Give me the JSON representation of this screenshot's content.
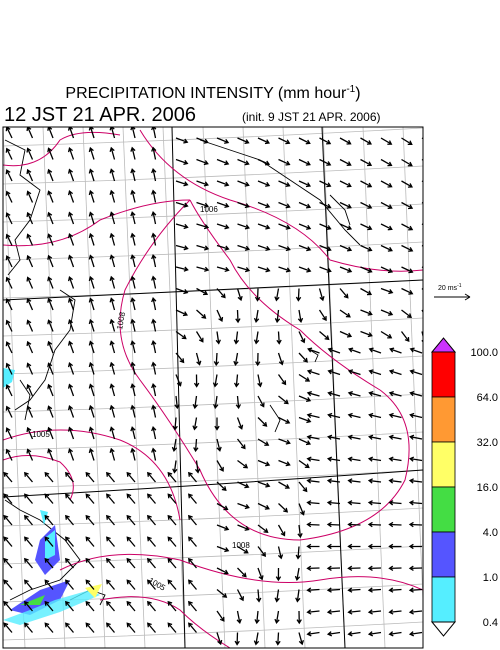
{
  "header": {
    "title": {
      "text": "PRECIPITATION INTENSITY (mm hour",
      "superscript": "-1",
      "suffix": ")"
    },
    "valid_time": "12 JST 21 APR. 2006",
    "init_time": "(init. 9 JST 21 APR. 2006)"
  },
  "vector_scale": {
    "text": "20 ms",
    "superscript": "-1"
  },
  "contour_labels": [
    "1006",
    "1008",
    "1005",
    "1008",
    "1005"
  ],
  "colorbar": {
    "labels": [
      "100.0",
      "64.0",
      "32.0",
      "16.0",
      "4.0",
      "1.0",
      "0.4"
    ],
    "colors": [
      "#ff0000",
      "#ff9933",
      "#ffff66",
      "#44dd44",
      "#5555ff",
      "#55eeff"
    ],
    "over_color": "#cc33ff",
    "under_color": "#ffffff"
  }
}
